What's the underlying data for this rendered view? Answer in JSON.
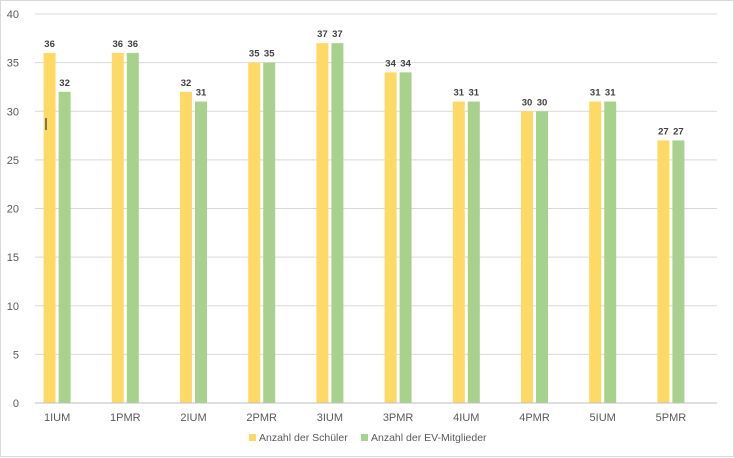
{
  "chart_data": {
    "type": "bar",
    "categories": [
      "1IUM",
      "1PMR",
      "2IUM",
      "2PMR",
      "3IUM",
      "3PMR",
      "4IUM",
      "4PMR",
      "5IUM",
      "5PMR"
    ],
    "series": [
      {
        "name": "Anzahl der Schüler",
        "color": "#ffd966",
        "values": [
          36,
          36,
          32,
          35,
          37,
          34,
          31,
          30,
          31,
          27
        ]
      },
      {
        "name": "Anzahl der EV-Mitglieder",
        "color": "#a9d18e",
        "values": [
          32,
          36,
          31,
          35,
          37,
          34,
          31,
          30,
          31,
          27
        ]
      }
    ],
    "title": "",
    "xlabel": "",
    "ylabel": "",
    "ylim": [
      0,
      40
    ],
    "yticks": [
      0,
      5,
      10,
      15,
      20,
      25,
      30,
      35,
      40
    ],
    "grid": true,
    "legend_position": "bottom",
    "data_labels": true
  }
}
